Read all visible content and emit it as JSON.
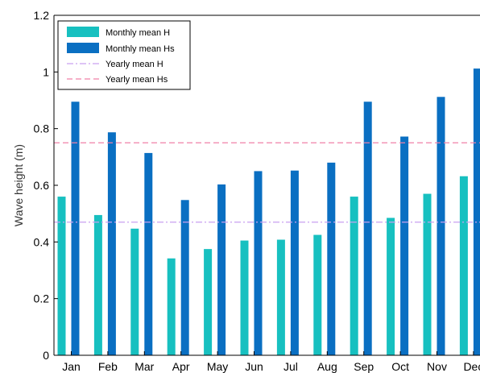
{
  "chart_data": {
    "type": "bar",
    "categories": [
      "Jan",
      "Feb",
      "Mar",
      "Apr",
      "May",
      "Jun",
      "Jul",
      "Aug",
      "Sep",
      "Oct",
      "Nov",
      "Dec"
    ],
    "series": [
      {
        "name": "Monthly mean H",
        "color": "#17c0c0",
        "values": [
          0.56,
          0.495,
          0.447,
          0.342,
          0.375,
          0.405,
          0.408,
          0.425,
          0.56,
          0.485,
          0.57,
          0.632
        ]
      },
      {
        "name": "Monthly mean Hs",
        "color": "#0a6fc2",
        "values": [
          0.895,
          0.787,
          0.714,
          0.548,
          0.603,
          0.65,
          0.652,
          0.68,
          0.895,
          0.772,
          0.912,
          1.012
        ]
      }
    ],
    "reference_lines": [
      {
        "name": "Yearly mean H",
        "value": 0.47,
        "color": "#c9a0f0",
        "style": "dash-dot"
      },
      {
        "name": "Yearly mean Hs",
        "value": 0.75,
        "color": "#f080a8",
        "style": "dashed"
      }
    ],
    "ylabel": "Wave height (m)",
    "xlabel": "",
    "ylim": [
      0,
      1.2
    ],
    "yticks": [
      0,
      0.2,
      0.4,
      0.6,
      0.8,
      1,
      1.2
    ],
    "ytick_labels": [
      "0",
      "0.2",
      "0.4",
      "0.6",
      "0.8",
      "1",
      "1.2"
    ],
    "legend_position": "top-left",
    "grid": false
  }
}
